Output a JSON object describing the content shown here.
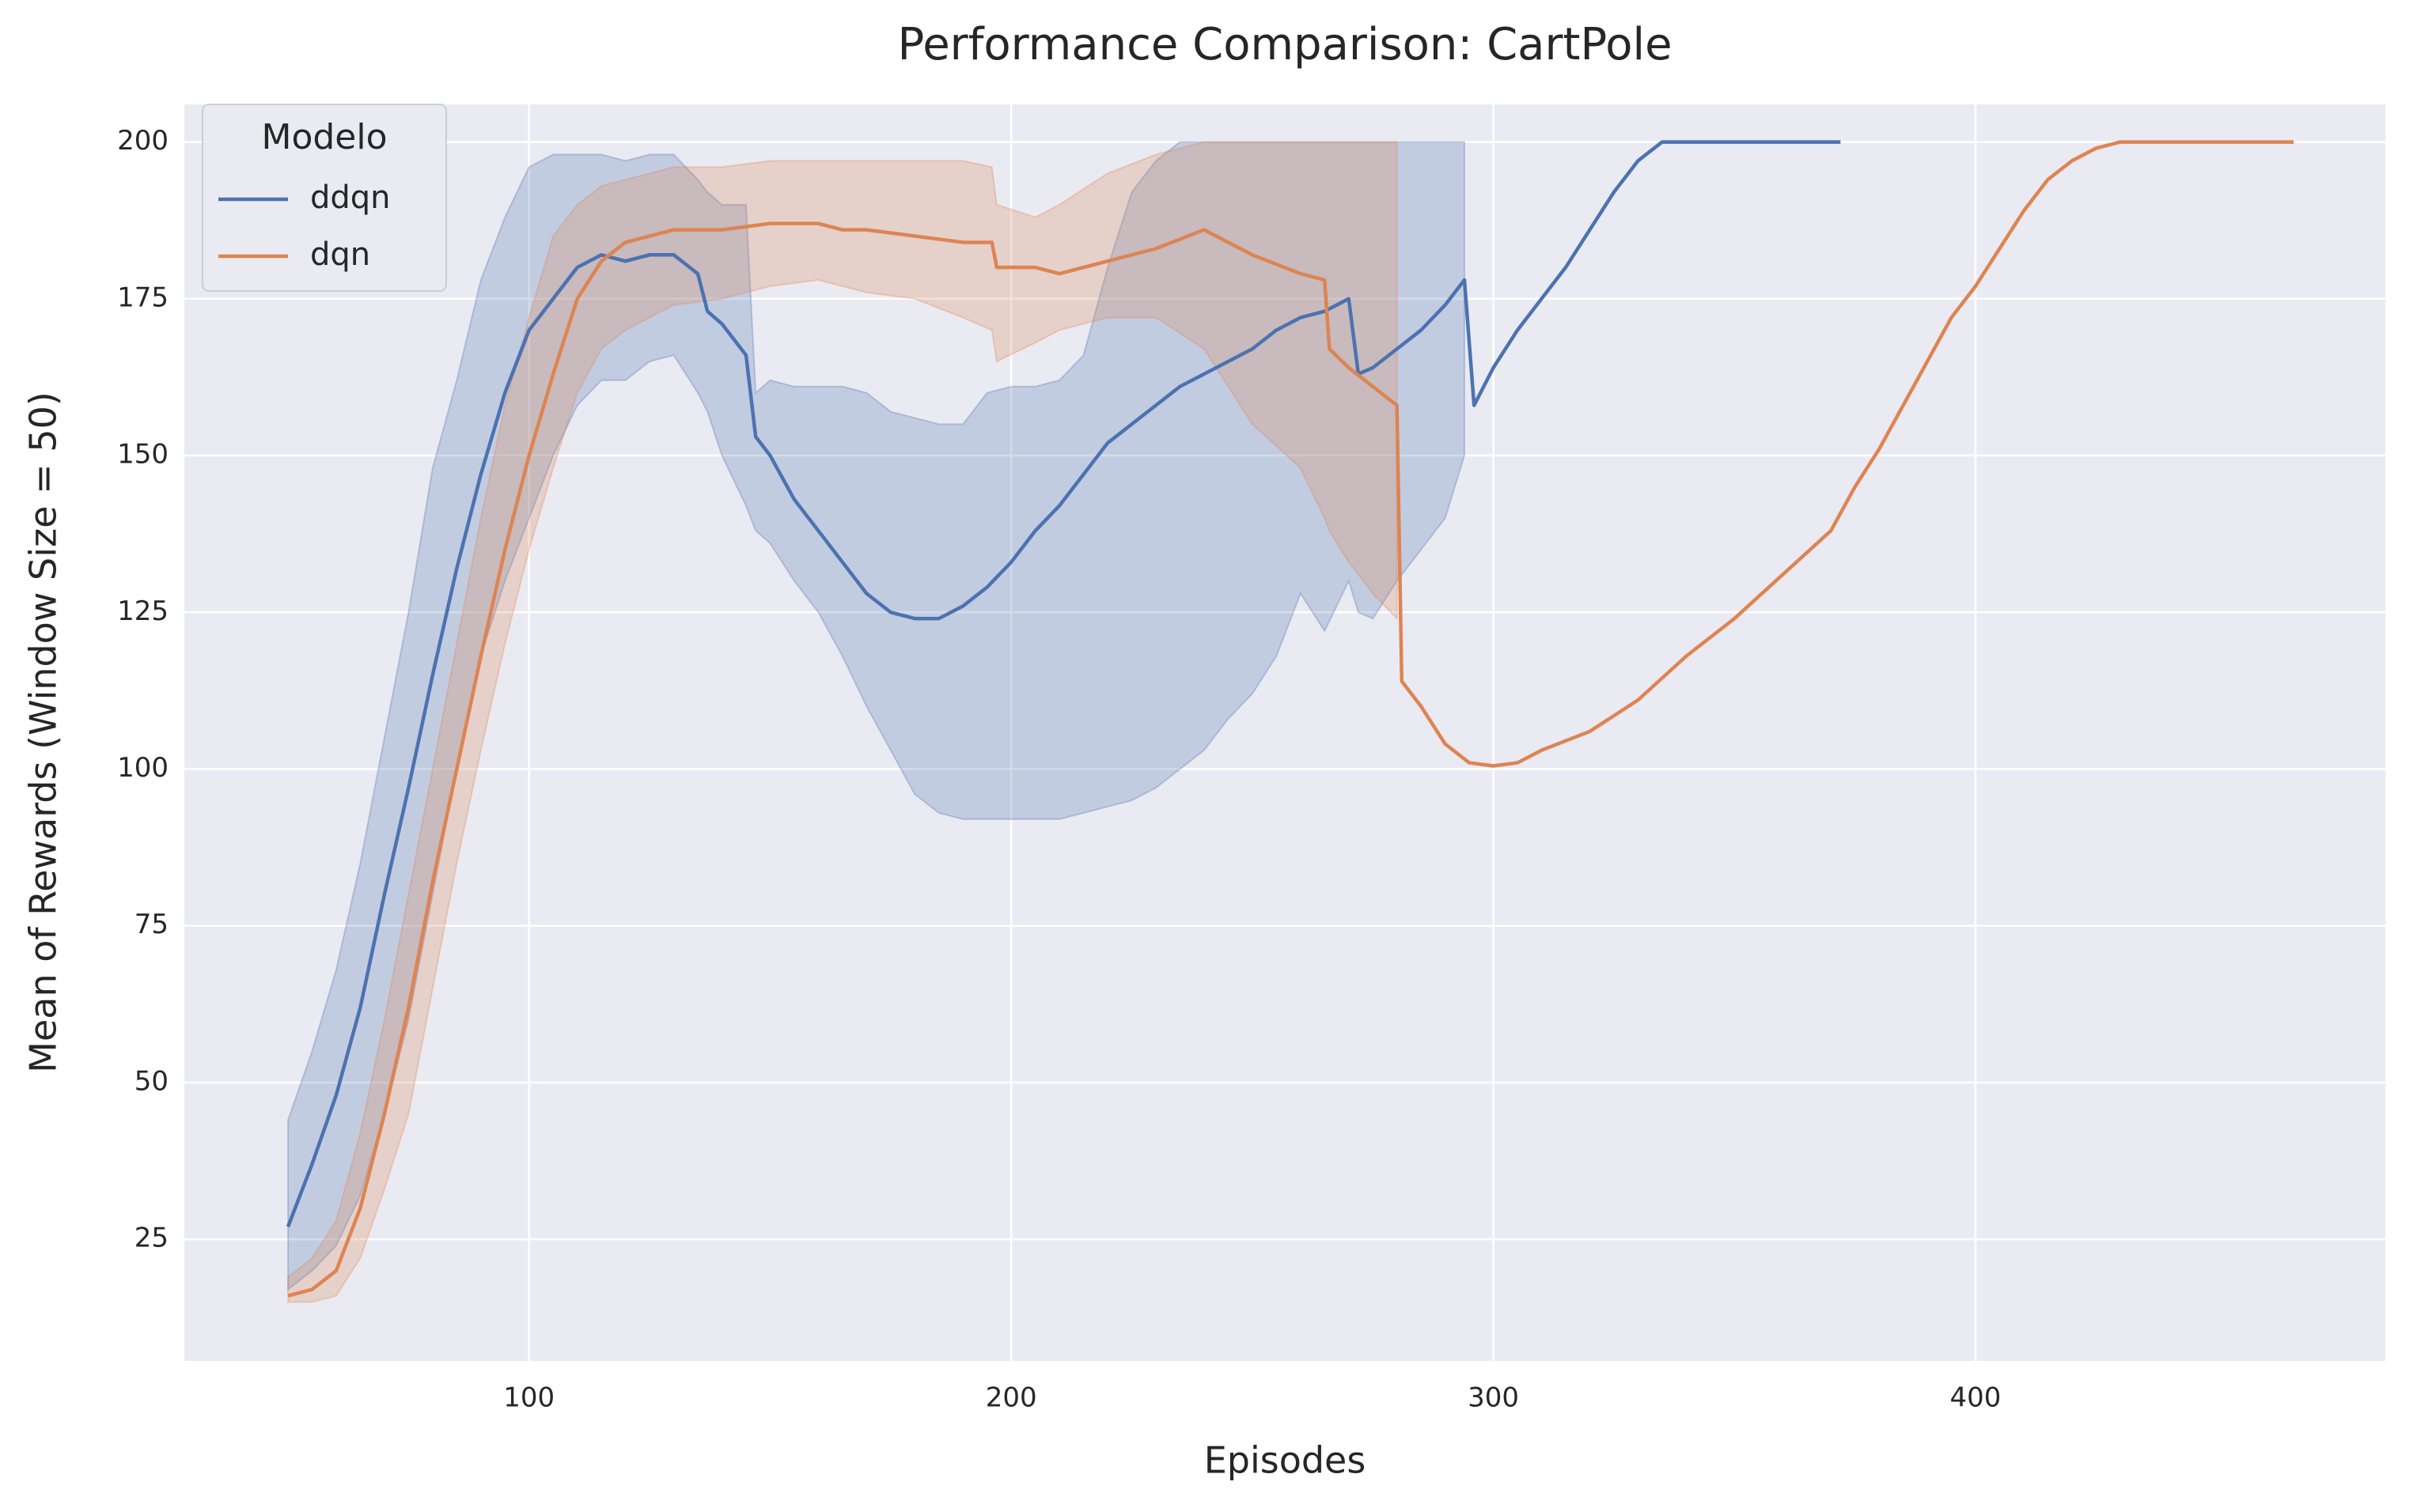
{
  "chart_data": {
    "type": "line",
    "title": "Performance Comparison: CartPole",
    "x_label": "Episodes",
    "y_label": "Mean of Rewards (Window Size = 50)",
    "xlim": [
      28.5,
      485
    ],
    "ylim": [
      5.6,
      206
    ],
    "xticks": [
      100,
      200,
      300,
      400
    ],
    "yticks": [
      25,
      50,
      75,
      100,
      125,
      150,
      175,
      200
    ],
    "grid": true,
    "legend_title": "Modelo",
    "legend_position": "upper left",
    "series": [
      {
        "name": "ddqn",
        "color": "#4c72b0",
        "x": [
          50,
          55,
          60,
          65,
          70,
          75,
          80,
          85,
          90,
          95,
          100,
          105,
          110,
          115,
          120,
          125,
          130,
          135,
          137,
          140,
          145,
          147,
          150,
          155,
          160,
          165,
          170,
          175,
          180,
          185,
          190,
          195,
          200,
          205,
          210,
          215,
          220,
          225,
          230,
          235,
          240,
          245,
          250,
          255,
          260,
          265,
          270,
          272,
          275,
          280,
          285,
          290,
          294,
          296,
          300,
          305,
          310,
          315,
          320,
          325,
          330,
          335,
          372
        ],
        "values": [
          27,
          37,
          48,
          62,
          80,
          97,
          115,
          132,
          147,
          160,
          170,
          175,
          180,
          182,
          181,
          182,
          182,
          179,
          173,
          171,
          166,
          153,
          150,
          143,
          138,
          133,
          128,
          125,
          124,
          124,
          126,
          129,
          133,
          138,
          142,
          147,
          152,
          155,
          158,
          161,
          163,
          165,
          167,
          170,
          172,
          173,
          175,
          163,
          164,
          167,
          170,
          174,
          178,
          158,
          164,
          170,
          175,
          180,
          186,
          192,
          197,
          200,
          200
        ],
        "lower": [
          17,
          20,
          24,
          32,
          45,
          60,
          80,
          100,
          118,
          130,
          140,
          150,
          158,
          162,
          162,
          165,
          166,
          160,
          157,
          150,
          142,
          138,
          136,
          130,
          125,
          118,
          110,
          103,
          96,
          93,
          92,
          92,
          92,
          92,
          92,
          93,
          94,
          95,
          97,
          100,
          103,
          108,
          112,
          118,
          128,
          122,
          130,
          125,
          124,
          130,
          135,
          140,
          150,
          null,
          null,
          null,
          null,
          null,
          null,
          null,
          null,
          null,
          null
        ],
        "upper": [
          44,
          55,
          68,
          85,
          105,
          125,
          148,
          162,
          178,
          188,
          196,
          198,
          198,
          198,
          197,
          198,
          198,
          194,
          192,
          190,
          190,
          160,
          162,
          161,
          161,
          161,
          160,
          157,
          156,
          155,
          155,
          160,
          161,
          161,
          162,
          166,
          180,
          192,
          197,
          200,
          200,
          200,
          200,
          200,
          200,
          200,
          200,
          200,
          200,
          200,
          200,
          200,
          200,
          null,
          null,
          null,
          null,
          null,
          null,
          null,
          null,
          null,
          null
        ]
      },
      {
        "name": "dqn",
        "color": "#dd8452",
        "x": [
          50,
          55,
          60,
          65,
          70,
          75,
          80,
          85,
          90,
          95,
          100,
          105,
          110,
          115,
          120,
          125,
          130,
          140,
          150,
          160,
          165,
          170,
          180,
          190,
          196,
          197,
          205,
          210,
          220,
          230,
          240,
          250,
          260,
          265,
          266,
          270,
          275,
          280,
          281,
          285,
          290,
          295,
          300,
          305,
          310,
          320,
          330,
          340,
          350,
          360,
          370,
          375,
          380,
          385,
          390,
          395,
          400,
          405,
          410,
          415,
          420,
          425,
          430,
          466
        ],
        "values": [
          16,
          17,
          20,
          30,
          45,
          62,
          82,
          100,
          118,
          135,
          150,
          163,
          175,
          181,
          184,
          185,
          186,
          186,
          187,
          187,
          186,
          186,
          185,
          184,
          184,
          180,
          180,
          179,
          181,
          183,
          186,
          182,
          179,
          178,
          167,
          164,
          161,
          158,
          114,
          110,
          104,
          101,
          100.5,
          101,
          103,
          106,
          111,
          118,
          124,
          131,
          138,
          145,
          151,
          158,
          165,
          172,
          177,
          183,
          189,
          194,
          197,
          199,
          200,
          200
        ],
        "lower": [
          15,
          15,
          16,
          22,
          33,
          45,
          65,
          85,
          103,
          120,
          135,
          148,
          160,
          167,
          170,
          172,
          174,
          175,
          177,
          178,
          177,
          176,
          175,
          172,
          170,
          165,
          168,
          170,
          172,
          172,
          167,
          155,
          148,
          140,
          138,
          133,
          128,
          124,
          null,
          null,
          null,
          null,
          null,
          null,
          null,
          null,
          null,
          null,
          null,
          null,
          null,
          null,
          null,
          null,
          null,
          null,
          null,
          null,
          null,
          null,
          null,
          null,
          null,
          null
        ],
        "upper": [
          19,
          22,
          28,
          42,
          60,
          80,
          100,
          120,
          140,
          158,
          172,
          185,
          190,
          193,
          194,
          195,
          196,
          196,
          197,
          197,
          197,
          197,
          197,
          197,
          196,
          190,
          188,
          190,
          195,
          198,
          200,
          200,
          200,
          200,
          200,
          200,
          200,
          200,
          null,
          null,
          null,
          null,
          null,
          null,
          null,
          null,
          null,
          null,
          null,
          null,
          null,
          null,
          null,
          null,
          null,
          null,
          null,
          null,
          null,
          null,
          null,
          null,
          null,
          null
        ]
      }
    ]
  }
}
